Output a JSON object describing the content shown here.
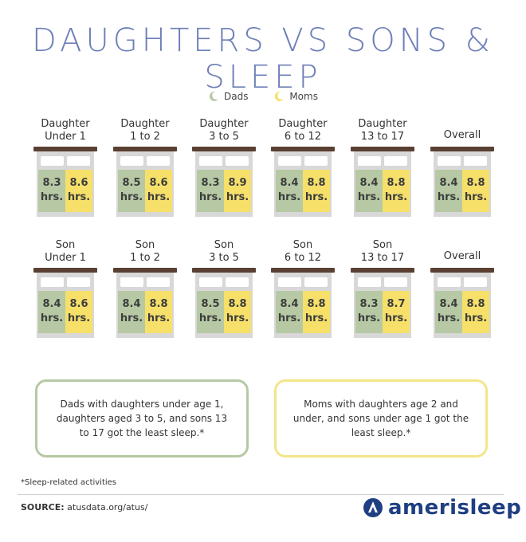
{
  "title": "DAUGHTERS VS SONS & SLEEP",
  "legend": {
    "dads_label": "Dads",
    "moms_label": "Moms",
    "dads_icon": "moon-icon",
    "moms_icon": "moon-icon"
  },
  "colors": {
    "dads": "#b6c9a4",
    "moms": "#f6e06a",
    "title": "#6e7fb8",
    "headboard": "#5a4032",
    "logo": "#1f3f82"
  },
  "chart_data": {
    "type": "table",
    "title": "DAUGHTERS VS SONS & SLEEP",
    "legend": [
      "Dads",
      "Moms"
    ],
    "unit": "hrs.",
    "rows": [
      {
        "group": "Daughter",
        "categories": [
          "Daughter\nUnder 1",
          "Daughter\n1 to 2",
          "Daughter\n3 to 5",
          "Daughter\n6 to 12",
          "Daughter\n13 to 17",
          "Overall"
        ],
        "dads": [
          8.3,
          8.5,
          8.3,
          8.4,
          8.4,
          8.4
        ],
        "moms": [
          8.6,
          8.6,
          8.9,
          8.8,
          8.8,
          8.8
        ]
      },
      {
        "group": "Son",
        "categories": [
          "Son\nUnder 1",
          "Son\n1 to 2",
          "Son\n3 to 5",
          "Son\n6 to 12",
          "Son\n13 to 17",
          "Overall"
        ],
        "dads": [
          8.4,
          8.4,
          8.5,
          8.4,
          8.3,
          8.4
        ],
        "moms": [
          8.6,
          8.8,
          8.8,
          8.8,
          8.7,
          8.8
        ]
      }
    ]
  },
  "notes": {
    "dads": "Dads with daughters under age 1, daughters aged 3 to 5, and sons 13 to 17 got the least sleep.*",
    "moms": "Moms with daughters age 2 and under, and sons under age 1 got the least sleep.*"
  },
  "footnote": "*Sleep-related activities",
  "source": {
    "label": "SOURCE:",
    "text": " atusdata.org/atus/"
  },
  "logo": {
    "text": "amerisleep",
    "icon": "amerisleep-logo-icon"
  }
}
